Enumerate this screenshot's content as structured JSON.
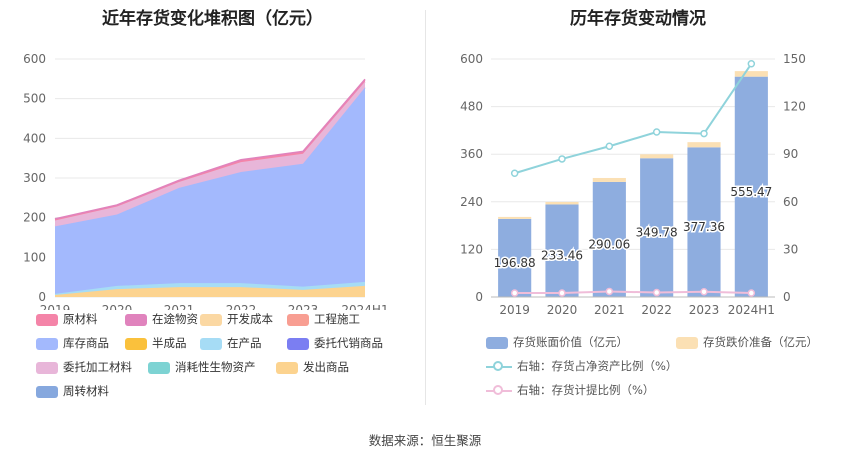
{
  "source": "数据来源：恒生聚源",
  "chart_data": [
    {
      "type": "area",
      "stacked": true,
      "title": "近年存货变化堆积图（亿元）",
      "categories": [
        "2019",
        "2020",
        "2021",
        "2022",
        "2023",
        "2024H1"
      ],
      "ylim": [
        0,
        600
      ],
      "yticks": [
        0,
        100,
        200,
        300,
        400,
        500,
        600
      ],
      "grid": true,
      "legend_position": "bottom",
      "series": [
        {
          "name": "发出商品",
          "color": "#fcd38f",
          "values": [
            5,
            20,
            25,
            25,
            18,
            28
          ]
        },
        {
          "name": "在产品",
          "color": "#a6dcf5",
          "values": [
            3,
            8,
            10,
            10,
            8,
            10
          ]
        },
        {
          "name": "库存商品",
          "color": "#a3b9fd",
          "values": [
            170,
            180,
            240,
            280,
            310,
            490
          ]
        },
        {
          "name": "委托加工材料",
          "color": "#e8b6d9",
          "values": [
            15,
            20,
            15,
            25,
            25,
            15
          ]
        },
        {
          "name": "原材料",
          "color": "#f484a8",
          "values": [
            3,
            3,
            3,
            5,
            5,
            5
          ]
        },
        {
          "name": "在途物资",
          "color": "#e083bd",
          "values": [
            1,
            1,
            1,
            1,
            1,
            1
          ]
        },
        {
          "name": "开发成本",
          "color": "#fbd8a3",
          "values": [
            0,
            0,
            0,
            0,
            0,
            0
          ]
        },
        {
          "name": "工程施工",
          "color": "#f89e92",
          "values": [
            0,
            0,
            0,
            0,
            0,
            0
          ]
        },
        {
          "name": "半成品",
          "color": "#fac13c",
          "values": [
            0,
            0,
            0,
            0,
            0,
            0
          ]
        },
        {
          "name": "委托代销商品",
          "color": "#7b7ef2",
          "values": [
            0,
            0,
            0,
            0,
            0,
            0
          ]
        },
        {
          "name": "消耗性生物资产",
          "color": "#7dd3d3",
          "values": [
            0,
            0,
            0,
            0,
            0,
            0
          ]
        },
        {
          "name": "周转材料",
          "color": "#86a8de",
          "values": [
            0,
            0,
            0,
            0,
            0,
            0
          ]
        }
      ],
      "legend_order": [
        "原材料",
        "在途物资",
        "开发成本",
        "工程施工",
        "库存商品",
        "半成品",
        "在产品",
        "委托代销商品",
        "委托加工材料",
        "消耗性生物资产",
        "发出商品",
        "周转材料"
      ]
    },
    {
      "type": "bar",
      "stacked": true,
      "title": "历年存货变动情况",
      "categories": [
        "2019",
        "2020",
        "2021",
        "2022",
        "2023",
        "2024H1"
      ],
      "ylim": [
        0,
        600
      ],
      "yticks": [
        0,
        120,
        240,
        360,
        480,
        600
      ],
      "y2lim": [
        0,
        150
      ],
      "y2ticks": [
        0,
        30,
        60,
        90,
        120,
        150
      ],
      "grid": true,
      "legend_position": "bottom",
      "series": [
        {
          "name": "存货账面价值（亿元）",
          "type": "bar",
          "color": "#8eaddf",
          "values": [
            196.88,
            233.46,
            290.06,
            349.78,
            377.36,
            555.47
          ],
          "labels": [
            "196.88",
            "233.46",
            "290.06",
            "349.78",
            "377.36",
            "555.47"
          ]
        },
        {
          "name": "存货跌价准备（亿元）",
          "type": "bar",
          "color": "#fbe0b4",
          "values": [
            5,
            6,
            10,
            10,
            13,
            14
          ]
        },
        {
          "name": "右轴：存货占净资产比例（%）",
          "type": "line",
          "axis": "right",
          "color": "#8fd3db",
          "values": [
            78,
            87,
            95,
            104,
            103,
            147
          ]
        },
        {
          "name": "右轴：存货计提比例（%）",
          "type": "line",
          "axis": "right",
          "color": "#f0bdd9",
          "values": [
            2.5,
            2.5,
            3.5,
            2.8,
            3.3,
            2.5
          ]
        }
      ]
    }
  ]
}
